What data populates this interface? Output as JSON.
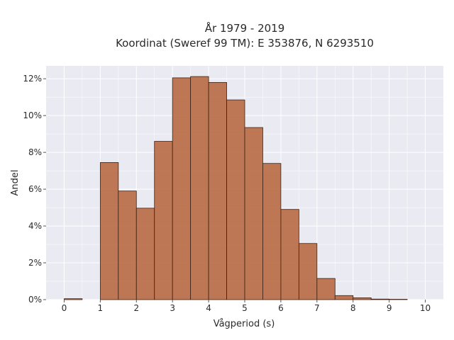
{
  "chart_data": {
    "type": "bar",
    "title": "År 1979 - 2019",
    "subtitle": "Koordinat (Sweref 99 TM): E 353876, N 6293510",
    "xlabel": "Vågperiod (s)",
    "ylabel": "Andel",
    "bin_width": 0.5,
    "bins": [
      0,
      0.5,
      1,
      1.5,
      2,
      2.5,
      3,
      3.5,
      4,
      4.5,
      5,
      5.5,
      6,
      6.5,
      7,
      7.5,
      8,
      8.5,
      9,
      9.5
    ],
    "values": [
      0.05,
      0,
      7.45,
      5.9,
      4.97,
      8.6,
      12.05,
      12.12,
      11.8,
      10.85,
      9.35,
      7.4,
      4.9,
      3.05,
      1.15,
      0.22,
      0.1,
      0.03,
      0.02,
      0
    ],
    "xlim": [
      -0.5,
      10.5
    ],
    "ylim": [
      0,
      12.7
    ],
    "xticks": [
      0,
      1,
      2,
      3,
      4,
      5,
      6,
      7,
      8,
      9,
      10
    ],
    "xtick_labels": [
      "0",
      "1",
      "2",
      "3",
      "4",
      "5",
      "6",
      "7",
      "8",
      "9",
      "10"
    ],
    "yticks": [
      0,
      2,
      4,
      6,
      8,
      10,
      12
    ],
    "ytick_labels": [
      "0%",
      "2%",
      "4%",
      "6%",
      "8%",
      "10%",
      "12%"
    ],
    "grid": true,
    "colors": {
      "bar_fill": "#b86a42",
      "bar_edge": "#3b2214",
      "plot_bg": "#eaeaf2"
    }
  }
}
